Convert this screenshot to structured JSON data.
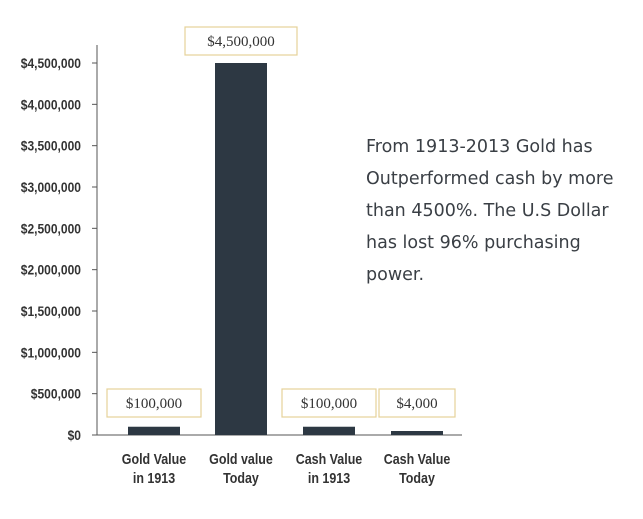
{
  "chart_data": {
    "type": "bar",
    "categories": [
      [
        "Gold Value",
        "in 1913"
      ],
      [
        "Gold value",
        "Today"
      ],
      [
        "Cash Value",
        "in 1913"
      ],
      [
        "Cash Value",
        "Today"
      ]
    ],
    "values": [
      100000,
      4500000,
      100000,
      4000
    ],
    "value_labels": [
      "$100,000",
      "$4,500,000",
      "$100,000",
      "$4,000"
    ],
    "y_ticks": [
      {
        "value": 0,
        "label": "$0"
      },
      {
        "value": 500000,
        "label": "$500,000"
      },
      {
        "value": 1000000,
        "label": "$1,000,000"
      },
      {
        "value": 1500000,
        "label": "$1,500,000"
      },
      {
        "value": 2000000,
        "label": "$2,000,000"
      },
      {
        "value": 2500000,
        "label": "$2,500,000"
      },
      {
        "value": 3000000,
        "label": "$3,000,000"
      },
      {
        "value": 3500000,
        "label": "$3,500,000"
      },
      {
        "value": 4000000,
        "label": "$4,000,000"
      },
      {
        "value": 4500000,
        "label": "$4,500,000"
      }
    ],
    "ylim": [
      0,
      4500000
    ],
    "grid": false,
    "title": "",
    "xlabel": "",
    "ylabel": "",
    "colors": {
      "bar": "#2d3843",
      "axis": "#555555",
      "label_border": "#e5d29a",
      "text": "#333333"
    }
  },
  "annotation": {
    "lines": [
      "From 1913-2013 Gold has",
      "Outperformed cash by more",
      "than 4500%. The U.S Dollar",
      "has lost 96% purchasing power."
    ]
  }
}
